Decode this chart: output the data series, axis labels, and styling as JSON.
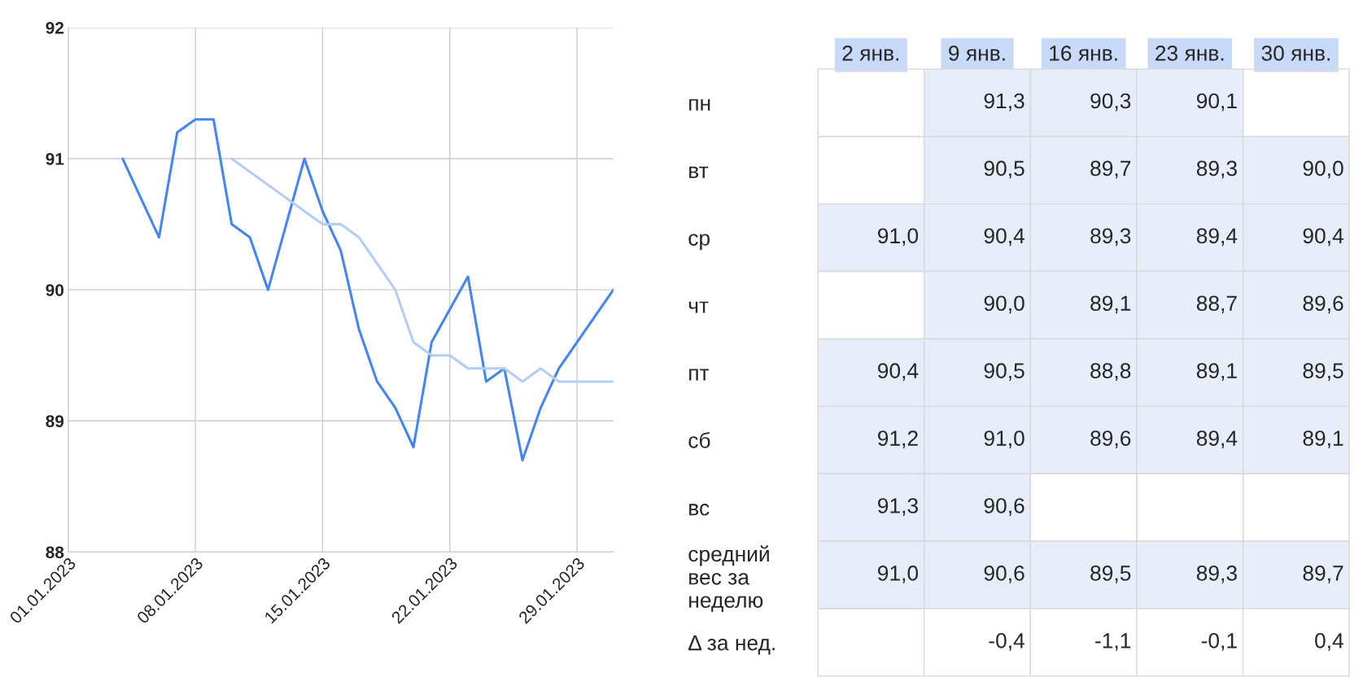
{
  "chart_data": [
    {
      "type": "line",
      "ylim": [
        88,
        92
      ],
      "yticks": [
        88,
        89,
        90,
        91,
        92
      ],
      "xlim": [
        "2023-01-01",
        "2023-01-31"
      ],
      "xticks": [
        {
          "value": "2023-01-01",
          "label": "01.01.2023"
        },
        {
          "value": "2023-01-08",
          "label": "08.01.2023"
        },
        {
          "value": "2023-01-15",
          "label": "15.01.2023"
        },
        {
          "value": "2023-01-22",
          "label": "22.01.2023"
        },
        {
          "value": "2023-01-29",
          "label": "29.01.2023"
        }
      ],
      "grid": true,
      "legend": false,
      "marker": "none",
      "line_style": "solid",
      "series": [
        {
          "color": "#4285f4",
          "x": [
            "2023-01-04",
            "2023-01-06",
            "2023-01-07",
            "2023-01-08",
            "2023-01-09",
            "2023-01-10",
            "2023-01-11",
            "2023-01-12",
            "2023-01-13",
            "2023-01-14",
            "2023-01-15",
            "2023-01-16",
            "2023-01-17",
            "2023-01-18",
            "2023-01-19",
            "2023-01-20",
            "2023-01-21",
            "2023-01-23",
            "2023-01-24",
            "2023-01-25",
            "2023-01-26",
            "2023-01-27",
            "2023-01-28",
            "2023-01-31"
          ],
          "values": [
            91.0,
            90.4,
            91.2,
            91.3,
            91.3,
            90.5,
            90.4,
            90.0,
            90.5,
            91.0,
            90.6,
            90.3,
            89.7,
            89.3,
            89.1,
            88.8,
            89.6,
            90.1,
            89.3,
            89.4,
            88.7,
            89.1,
            89.4,
            90.0
          ]
        },
        {
          "color": "#b3cdf7",
          "x": [
            "2023-01-10",
            "2023-01-11",
            "2023-01-12",
            "2023-01-13",
            "2023-01-14",
            "2023-01-15",
            "2023-01-16",
            "2023-01-17",
            "2023-01-18",
            "2023-01-19",
            "2023-01-20",
            "2023-01-21",
            "2023-01-22",
            "2023-01-23",
            "2023-01-24",
            "2023-01-25",
            "2023-01-26",
            "2023-01-27",
            "2023-01-28",
            "2023-01-29",
            "2023-01-30",
            "2023-01-31"
          ],
          "values": [
            91.0,
            90.9,
            90.8,
            90.7,
            90.6,
            90.5,
            90.5,
            90.4,
            90.2,
            90.0,
            89.6,
            89.5,
            89.5,
            89.4,
            89.4,
            89.4,
            89.3,
            89.4,
            89.3,
            89.3,
            89.3,
            89.3
          ]
        }
      ]
    },
    {
      "type": "heatmap",
      "categories": [
        "2 янв.",
        "9 янв.",
        "16 янв.",
        "23 янв.",
        "30 янв."
      ],
      "y_categories": [
        "пн",
        "вт",
        "ср",
        "чт",
        "пт",
        "сб",
        "вс",
        "средний\nвес за\nнеделю",
        "Δ за нед."
      ],
      "cells": [
        [
          null,
          91.3,
          90.3,
          90.1,
          null
        ],
        [
          null,
          90.5,
          89.7,
          89.3,
          90.0
        ],
        [
          91.0,
          90.4,
          89.3,
          89.4,
          90.4
        ],
        [
          null,
          90.0,
          89.1,
          88.7,
          89.6
        ],
        [
          90.4,
          90.5,
          88.8,
          89.1,
          89.5
        ],
        [
          91.2,
          91.0,
          89.6,
          89.4,
          89.1
        ],
        [
          91.3,
          90.6,
          null,
          null,
          null
        ],
        [
          91.0,
          90.6,
          89.5,
          89.3,
          89.7
        ],
        [
          null,
          -0.4,
          -1.1,
          -0.1,
          0.4
        ]
      ],
      "cell_labels": [
        [
          null,
          "91,3",
          "90,3",
          "90,1",
          null
        ],
        [
          null,
          "90,5",
          "89,7",
          "89,3",
          "90,0"
        ],
        [
          "91,0",
          "90,4",
          "89,3",
          "89,4",
          "90,4"
        ],
        [
          null,
          "90,0",
          "89,1",
          "88,7",
          "89,6"
        ],
        [
          "90,4",
          "90,5",
          "88,8",
          "89,1",
          "89,5"
        ],
        [
          "91,2",
          "91,0",
          "89,6",
          "89,4",
          "89,1"
        ],
        [
          "91,3",
          "90,6",
          null,
          null,
          null
        ],
        [
          "91,0",
          "90,6",
          "89,5",
          "89,3",
          "89,7"
        ],
        [
          null,
          "-0,4",
          "-1,1",
          "-0,1",
          "0,4"
        ]
      ]
    }
  ]
}
